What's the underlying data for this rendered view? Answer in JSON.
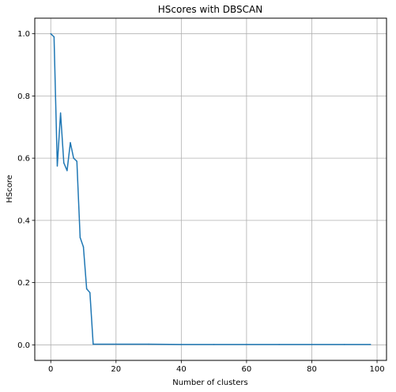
{
  "chart_data": {
    "type": "line",
    "title": "HScores with DBSCAN",
    "xlabel": "Number of clusters",
    "ylabel": "HScore",
    "xlim": [
      -4.9,
      102.9
    ],
    "ylim": [
      -0.05,
      1.05
    ],
    "x_ticks": [
      0,
      20,
      40,
      60,
      80,
      100
    ],
    "y_ticks": [
      0.0,
      0.2,
      0.4,
      0.6,
      0.8,
      1.0
    ],
    "x_tick_labels": [
      "0",
      "20",
      "40",
      "60",
      "80",
      "100"
    ],
    "y_tick_labels": [
      "0.0",
      "0.2",
      "0.4",
      "0.6",
      "0.8",
      "1.0"
    ],
    "grid": true,
    "series": [
      {
        "color": "#1f77b4",
        "x": [
          0,
          1,
          2,
          3,
          4,
          5,
          6,
          7,
          8,
          9,
          10,
          11,
          12,
          13,
          20,
          30,
          40,
          50,
          60,
          70,
          80,
          90,
          98
        ],
        "y": [
          1.0,
          0.99,
          0.575,
          0.745,
          0.585,
          0.56,
          0.65,
          0.6,
          0.59,
          0.345,
          0.315,
          0.18,
          0.168,
          0.002,
          0.002,
          0.002,
          0.001,
          0.001,
          0.001,
          0.001,
          0.001,
          0.001,
          0.001
        ]
      }
    ]
  }
}
